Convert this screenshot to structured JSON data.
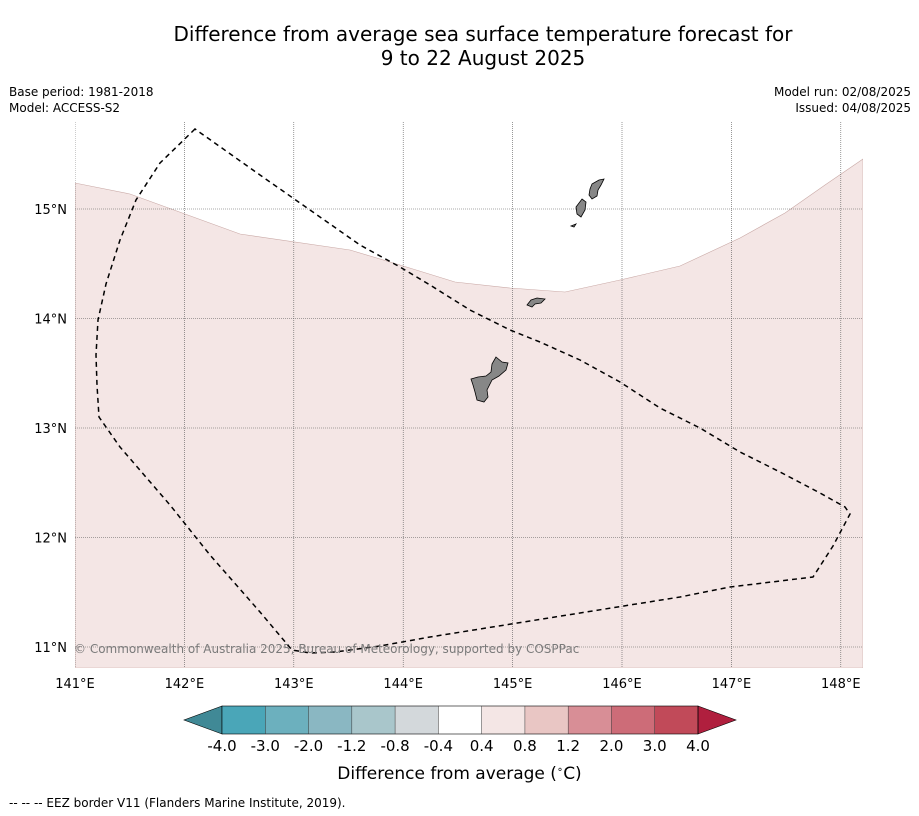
{
  "header": {
    "title_line1": "Difference from average sea surface temperature forecast for",
    "title_line2": "9 to 22 August 2025",
    "base_period": "Base period: 1981-2018",
    "model": "Model: ACCESS-S2",
    "model_run": "Model run: 02/08/2025",
    "issued": "Issued: 04/08/2025"
  },
  "map": {
    "lon_ticks": [
      "141°E",
      "142°E",
      "143°E",
      "144°E",
      "145°E",
      "146°E",
      "147°E",
      "148°E"
    ],
    "lat_ticks": [
      "15°N",
      "14°N",
      "13°N",
      "12°N",
      "11°N"
    ],
    "lon_range": [
      141,
      148.2
    ],
    "lat_range": [
      10.8,
      15.8
    ],
    "grid": true,
    "copyright": "© Commonwealth of Australia 2025, Bureau of Meteorology, supported by COSPPac",
    "anomaly_fill_color": "#f4e6e5",
    "land_color": "#878787",
    "eez_line": "dashed black"
  },
  "colorbar": {
    "tick_labels": [
      "-4.0",
      "-3.0",
      "-2.0",
      "-1.2",
      "-0.8",
      "-0.4",
      "0.4",
      "0.8",
      "1.2",
      "2.0",
      "3.0",
      "4.0"
    ],
    "colors": [
      "#4aa6b8",
      "#6cb0be",
      "#8ab7c2",
      "#a9c6cb",
      "#d3d8db",
      "#ffffff",
      "#f4e6e5",
      "#e9c6c4",
      "#d88e96",
      "#cd6c78",
      "#c14a59"
    ],
    "under_color": "#408996",
    "over_color": "#b01f3e",
    "label": "Difference from average (",
    "label_unit_sup": "∘",
    "label_unit": "C)"
  },
  "footnote": "-- -- -- EEZ border V11 (Flanders Marine Institute, 2019)."
}
